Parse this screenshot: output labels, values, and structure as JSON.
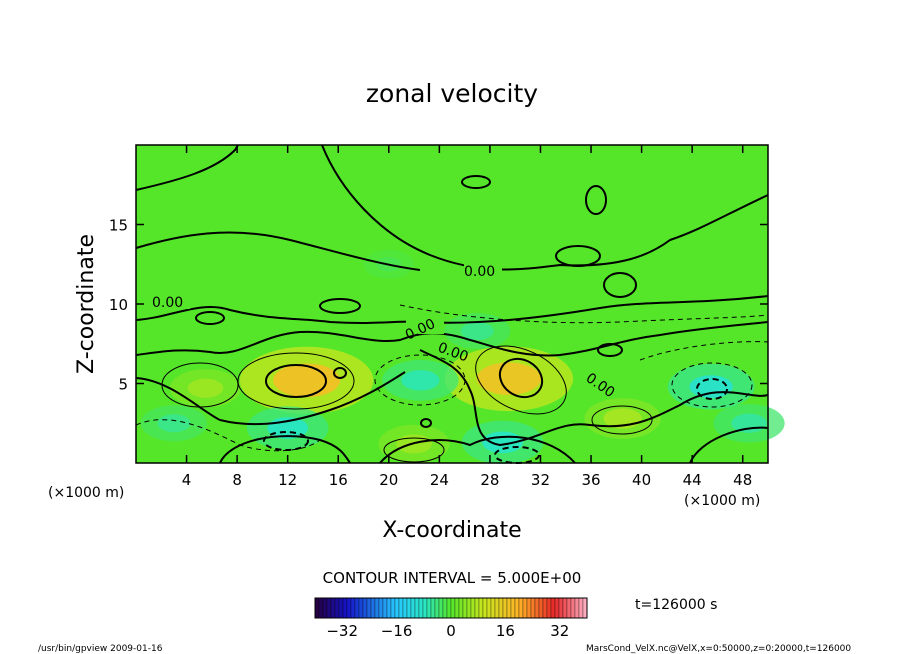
{
  "chart_data": {
    "type": "heatmap",
    "title": "zonal velocity",
    "xlabel": "X-coordinate",
    "ylabel": "Z-coordinate",
    "x_unit": "(×1000 m)",
    "z_unit": "(×1000 m)",
    "xlim": [
      0,
      50
    ],
    "ylim": [
      0,
      20
    ],
    "x_ticks": [
      4,
      8,
      12,
      16,
      20,
      24,
      28,
      32,
      36,
      40,
      44,
      48
    ],
    "y_ticks": [
      5,
      10,
      15
    ],
    "contour_interval_text": "CONTOUR INTERVAL = 5.000E+00",
    "zero_contour_label": "0.00",
    "time_text": "t=126000 s",
    "colorbar": {
      "range": [
        -40,
        40
      ],
      "ticks": [
        -32,
        -16,
        0,
        16,
        32
      ]
    },
    "features": [
      {
        "x": 13.5,
        "z": 5.2,
        "value": 18,
        "kind": "max"
      },
      {
        "x": 29.5,
        "z": 5.3,
        "value": 17,
        "kind": "max"
      },
      {
        "x": 5.5,
        "z": 4.7,
        "value": 6,
        "kind": "max"
      },
      {
        "x": 38.5,
        "z": 2.8,
        "value": 7,
        "kind": "max"
      },
      {
        "x": 22.0,
        "z": 1.2,
        "value": 6,
        "kind": "max"
      },
      {
        "x": 22.5,
        "z": 5.2,
        "value": -7,
        "kind": "min"
      },
      {
        "x": 45.5,
        "z": 4.8,
        "value": -9,
        "kind": "min"
      },
      {
        "x": 12.0,
        "z": 2.2,
        "value": -8,
        "kind": "min"
      },
      {
        "x": 29.0,
        "z": 1.3,
        "value": -8,
        "kind": "min"
      },
      {
        "x": 3.0,
        "z": 2.5,
        "value": -5,
        "kind": "min"
      },
      {
        "x": 48.5,
        "z": 2.5,
        "value": -6,
        "kind": "min"
      },
      {
        "x": 27.0,
        "z": 8.3,
        "value": -5,
        "kind": "min"
      },
      {
        "x": 20.0,
        "z": 12.5,
        "value": -2,
        "kind": "min"
      }
    ]
  },
  "footer": {
    "left": "/usr/bin/gpview   2009-01-16",
    "right": "MarsCond_VelX.nc@VelX,x=0:50000,z=0:20000,t=126000"
  }
}
